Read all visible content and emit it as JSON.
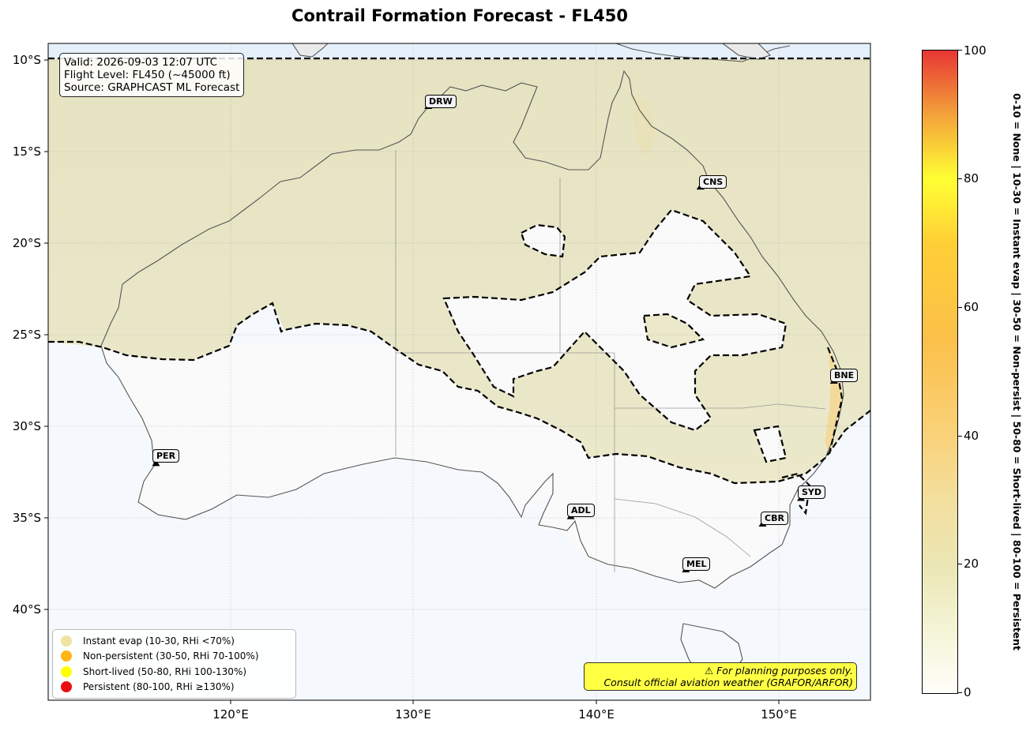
{
  "title": "Contrail Formation Forecast - FL450",
  "info": {
    "valid": "Valid: 2026-09-03 12:07 UTC",
    "flight_level": "Flight Level: FL450 (~45000 ft)",
    "source": "Source: GRAPHCAST ML Forecast"
  },
  "lat_labels": [
    "10°S",
    "15°S",
    "20°S",
    "25°S",
    "30°S",
    "35°S",
    "40°S"
  ],
  "lon_labels": [
    "120°E",
    "130°E",
    "140°E",
    "150°E"
  ],
  "cities": [
    {
      "code": "DRW",
      "lon": 130.8,
      "lat": -12.5
    },
    {
      "code": "CNS",
      "lon": 145.7,
      "lat": -16.9
    },
    {
      "code": "BNE",
      "lon": 153.0,
      "lat": -27.5
    },
    {
      "code": "PER",
      "lon": 115.9,
      "lat": -32.0
    },
    {
      "code": "ADL",
      "lon": 138.6,
      "lat": -34.9
    },
    {
      "code": "SYD",
      "lon": 151.2,
      "lat": -33.9
    },
    {
      "code": "CBR",
      "lon": 149.1,
      "lat": -35.3
    },
    {
      "code": "MEL",
      "lon": 144.9,
      "lat": -37.8
    }
  ],
  "legend": [
    {
      "label": "Instant evap (10-30, RHi <70%)",
      "color": "#f0e2a0"
    },
    {
      "label": "Non-persistent (30-50, RHi 70-100%)",
      "color": "#ffb515"
    },
    {
      "label": "Short-lived (50-80, RHi 100-130%)",
      "color": "#ffff00"
    },
    {
      "label": "Persistent (80-100, RHi ≥130%)",
      "color": "#e81010"
    }
  ],
  "warning": {
    "line1": "⚠ For planning purposes only.",
    "line2": "Consult official aviation weather (GRAFOR/ARFOR)"
  },
  "colorbar": {
    "ticks": [
      "0",
      "20",
      "40",
      "60",
      "80",
      "100"
    ],
    "side_label": "0-10 = None  |  10-30 = Instant evap  |  30-50 = Non-persist  |  50-80 = Short-lived  |  80-100 = Persistent"
  },
  "colors": {
    "ocean": "#f5f9fd",
    "north_field": "#e8e6c6",
    "land_south": "#fafafa",
    "contour": "#000000"
  }
}
